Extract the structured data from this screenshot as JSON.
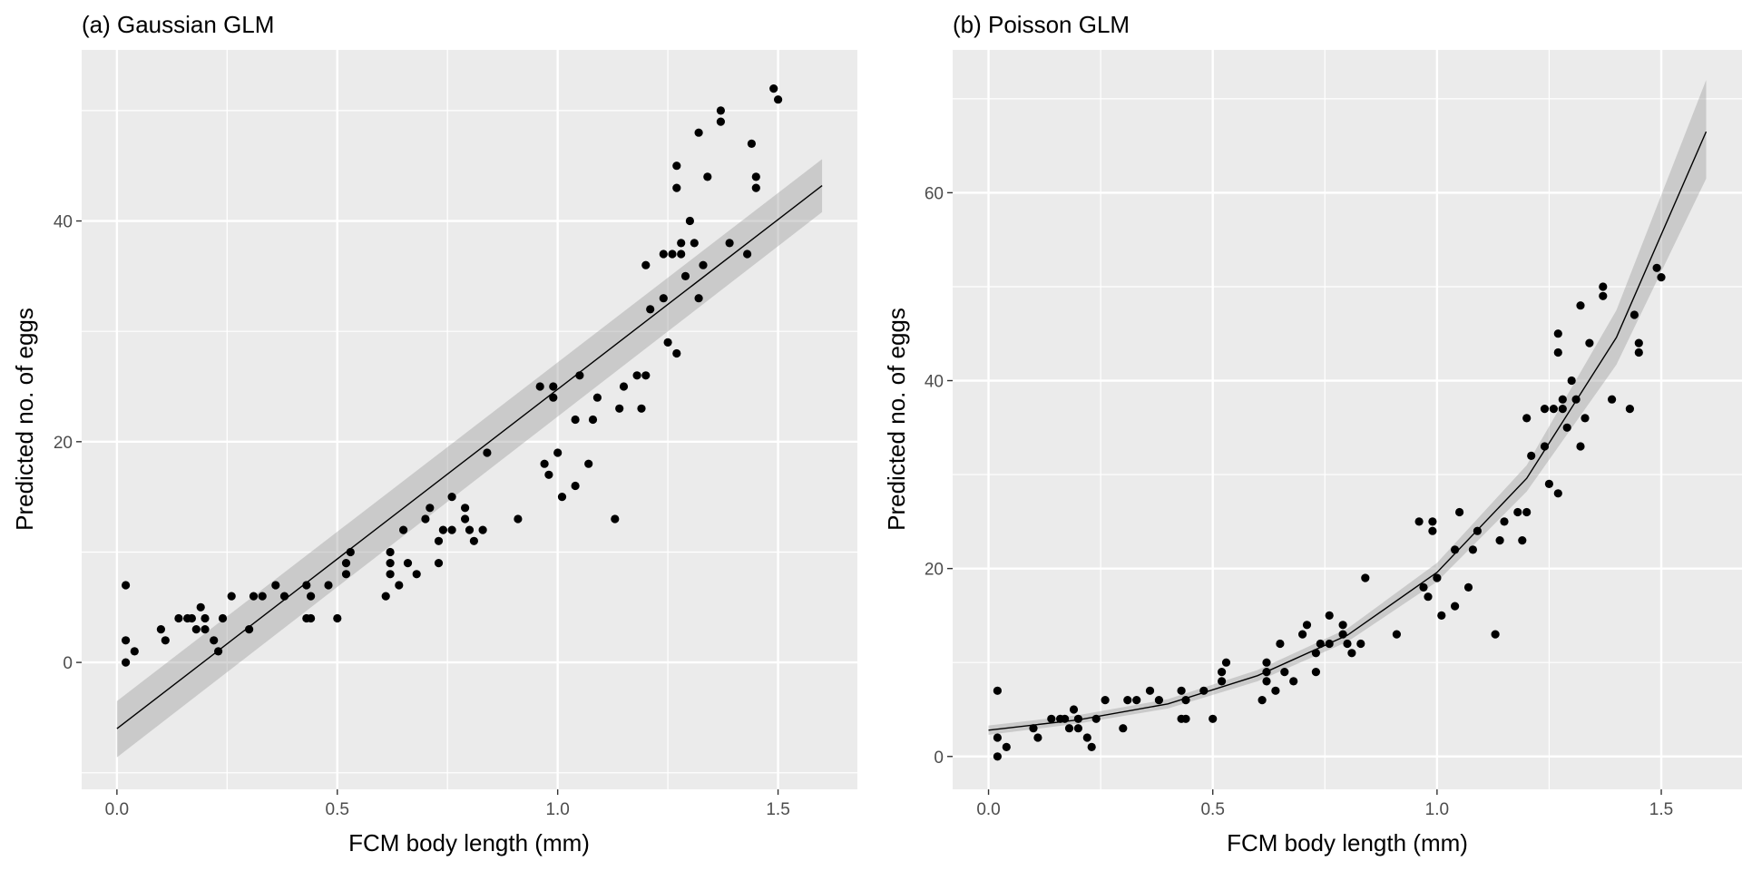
{
  "chart_data": [
    {
      "type": "scatter",
      "title": "(a) Gaussian GLM",
      "xlabel": "FCM body length (mm)",
      "ylabel": "Predicted no. of eggs",
      "xlim": [
        -0.08,
        1.68
      ],
      "ylim": [
        -11.5,
        55.5
      ],
      "xticks": [
        0,
        0.5,
        1,
        1.5
      ],
      "xtick_labels": [
        "0.0",
        "0.5",
        "1.0",
        "1.5"
      ],
      "yticks": [
        0,
        20,
        40
      ],
      "ytick_labels": [
        "0",
        "20",
        "40"
      ],
      "grid": true,
      "legend": "none",
      "points": [
        [
          0.02,
          7
        ],
        [
          0.02,
          2
        ],
        [
          0.02,
          0
        ],
        [
          0.04,
          1
        ],
        [
          0.1,
          3
        ],
        [
          0.11,
          2
        ],
        [
          0.14,
          4
        ],
        [
          0.16,
          4
        ],
        [
          0.17,
          4
        ],
        [
          0.18,
          3
        ],
        [
          0.19,
          5
        ],
        [
          0.2,
          4
        ],
        [
          0.2,
          3
        ],
        [
          0.22,
          2
        ],
        [
          0.23,
          1
        ],
        [
          0.24,
          4
        ],
        [
          0.26,
          6
        ],
        [
          0.3,
          3
        ],
        [
          0.31,
          6
        ],
        [
          0.33,
          6
        ],
        [
          0.36,
          7
        ],
        [
          0.38,
          6
        ],
        [
          0.43,
          7
        ],
        [
          0.43,
          4
        ],
        [
          0.44,
          4
        ],
        [
          0.44,
          6
        ],
        [
          0.48,
          7
        ],
        [
          0.5,
          4
        ],
        [
          0.52,
          8
        ],
        [
          0.52,
          9
        ],
        [
          0.53,
          10
        ],
        [
          0.61,
          6
        ],
        [
          0.62,
          10
        ],
        [
          0.62,
          9
        ],
        [
          0.62,
          8
        ],
        [
          0.64,
          7
        ],
        [
          0.65,
          12
        ],
        [
          0.66,
          9
        ],
        [
          0.68,
          8
        ],
        [
          0.7,
          13
        ],
        [
          0.71,
          14
        ],
        [
          0.73,
          9
        ],
        [
          0.73,
          11
        ],
        [
          0.74,
          12
        ],
        [
          0.76,
          12
        ],
        [
          0.76,
          15
        ],
        [
          0.79,
          13
        ],
        [
          0.79,
          14
        ],
        [
          0.8,
          12
        ],
        [
          0.81,
          11
        ],
        [
          0.83,
          12
        ],
        [
          0.84,
          19
        ],
        [
          0.91,
          13
        ],
        [
          0.96,
          25
        ],
        [
          0.97,
          18
        ],
        [
          0.98,
          17
        ],
        [
          0.99,
          24
        ],
        [
          0.99,
          25
        ],
        [
          1,
          19
        ],
        [
          1.01,
          15
        ],
        [
          1.04,
          16
        ],
        [
          1.04,
          22
        ],
        [
          1.05,
          26
        ],
        [
          1.07,
          18
        ],
        [
          1.08,
          22
        ],
        [
          1.09,
          24
        ],
        [
          1.13,
          13
        ],
        [
          1.14,
          23
        ],
        [
          1.15,
          25
        ],
        [
          1.18,
          26
        ],
        [
          1.19,
          23
        ],
        [
          1.2,
          26
        ],
        [
          1.2,
          36
        ],
        [
          1.21,
          32
        ],
        [
          1.24,
          33
        ],
        [
          1.24,
          37
        ],
        [
          1.25,
          29
        ],
        [
          1.26,
          37
        ],
        [
          1.27,
          45
        ],
        [
          1.27,
          43
        ],
        [
          1.27,
          28
        ],
        [
          1.28,
          37
        ],
        [
          1.28,
          38
        ],
        [
          1.29,
          35
        ],
        [
          1.3,
          40
        ],
        [
          1.31,
          38
        ],
        [
          1.32,
          33
        ],
        [
          1.32,
          48
        ],
        [
          1.33,
          36
        ],
        [
          1.34,
          44
        ],
        [
          1.37,
          50
        ],
        [
          1.37,
          49
        ],
        [
          1.39,
          38
        ],
        [
          1.43,
          37
        ],
        [
          1.44,
          47
        ],
        [
          1.45,
          44
        ],
        [
          1.45,
          43
        ],
        [
          1.49,
          52
        ],
        [
          1.5,
          51
        ]
      ],
      "fit": {
        "x": [
          0,
          1.6
        ],
        "y": [
          -6,
          43.2
        ],
        "ci_lower": [
          -8.6,
          40.8
        ],
        "ci_upper": [
          -3.5,
          45.6
        ]
      }
    },
    {
      "type": "scatter",
      "title": "(b) Poisson GLM",
      "xlabel": "FCM body length (mm)",
      "ylabel": "Predicted no. of eggs",
      "xlim": [
        -0.08,
        1.68
      ],
      "ylim": [
        -3.5,
        75.2
      ],
      "xticks": [
        0,
        0.5,
        1,
        1.5
      ],
      "xtick_labels": [
        "0.0",
        "0.5",
        "1.0",
        "1.5"
      ],
      "yticks": [
        0,
        20,
        40,
        60
      ],
      "ytick_labels": [
        "0",
        "20",
        "40",
        "60"
      ],
      "grid": true,
      "legend": "none",
      "points": [
        [
          0.02,
          7
        ],
        [
          0.02,
          2
        ],
        [
          0.02,
          0
        ],
        [
          0.04,
          1
        ],
        [
          0.1,
          3
        ],
        [
          0.11,
          2
        ],
        [
          0.14,
          4
        ],
        [
          0.16,
          4
        ],
        [
          0.17,
          4
        ],
        [
          0.18,
          3
        ],
        [
          0.19,
          5
        ],
        [
          0.2,
          4
        ],
        [
          0.2,
          3
        ],
        [
          0.22,
          2
        ],
        [
          0.23,
          1
        ],
        [
          0.24,
          4
        ],
        [
          0.26,
          6
        ],
        [
          0.3,
          3
        ],
        [
          0.31,
          6
        ],
        [
          0.33,
          6
        ],
        [
          0.36,
          7
        ],
        [
          0.38,
          6
        ],
        [
          0.43,
          7
        ],
        [
          0.43,
          4
        ],
        [
          0.44,
          4
        ],
        [
          0.44,
          6
        ],
        [
          0.48,
          7
        ],
        [
          0.5,
          4
        ],
        [
          0.52,
          8
        ],
        [
          0.52,
          9
        ],
        [
          0.53,
          10
        ],
        [
          0.61,
          6
        ],
        [
          0.62,
          10
        ],
        [
          0.62,
          9
        ],
        [
          0.62,
          8
        ],
        [
          0.64,
          7
        ],
        [
          0.65,
          12
        ],
        [
          0.66,
          9
        ],
        [
          0.68,
          8
        ],
        [
          0.7,
          13
        ],
        [
          0.71,
          14
        ],
        [
          0.73,
          9
        ],
        [
          0.73,
          11
        ],
        [
          0.74,
          12
        ],
        [
          0.76,
          12
        ],
        [
          0.76,
          15
        ],
        [
          0.79,
          13
        ],
        [
          0.79,
          14
        ],
        [
          0.8,
          12
        ],
        [
          0.81,
          11
        ],
        [
          0.83,
          12
        ],
        [
          0.84,
          19
        ],
        [
          0.91,
          13
        ],
        [
          0.96,
          25
        ],
        [
          0.97,
          18
        ],
        [
          0.98,
          17
        ],
        [
          0.99,
          24
        ],
        [
          0.99,
          25
        ],
        [
          1,
          19
        ],
        [
          1.01,
          15
        ],
        [
          1.04,
          16
        ],
        [
          1.04,
          22
        ],
        [
          1.05,
          26
        ],
        [
          1.07,
          18
        ],
        [
          1.08,
          22
        ],
        [
          1.09,
          24
        ],
        [
          1.13,
          13
        ],
        [
          1.14,
          23
        ],
        [
          1.15,
          25
        ],
        [
          1.18,
          26
        ],
        [
          1.19,
          23
        ],
        [
          1.2,
          26
        ],
        [
          1.2,
          36
        ],
        [
          1.21,
          32
        ],
        [
          1.24,
          33
        ],
        [
          1.24,
          37
        ],
        [
          1.25,
          29
        ],
        [
          1.26,
          37
        ],
        [
          1.27,
          45
        ],
        [
          1.27,
          43
        ],
        [
          1.27,
          28
        ],
        [
          1.28,
          37
        ],
        [
          1.28,
          38
        ],
        [
          1.29,
          35
        ],
        [
          1.3,
          40
        ],
        [
          1.31,
          38
        ],
        [
          1.32,
          33
        ],
        [
          1.32,
          48
        ],
        [
          1.33,
          36
        ],
        [
          1.34,
          44
        ],
        [
          1.37,
          50
        ],
        [
          1.37,
          49
        ],
        [
          1.39,
          38
        ],
        [
          1.43,
          37
        ],
        [
          1.44,
          47
        ],
        [
          1.45,
          44
        ],
        [
          1.45,
          43
        ],
        [
          1.49,
          52
        ],
        [
          1.5,
          51
        ]
      ],
      "fit": {
        "x": [
          0,
          0.2,
          0.4,
          0.6,
          0.8,
          1.0,
          1.2,
          1.4,
          1.6
        ],
        "y": [
          2.8,
          3.9,
          5.6,
          8.6,
          12.9,
          19.6,
          29.6,
          44.6,
          66.5
        ],
        "ci_lower": [
          2.3,
          3.5,
          5.1,
          8.0,
          12.2,
          18.6,
          28.2,
          41.7,
          61.5
        ],
        "ci_upper": [
          3.3,
          4.4,
          6.1,
          9.2,
          13.6,
          20.6,
          31.0,
          47.5,
          72.0
        ]
      }
    }
  ]
}
